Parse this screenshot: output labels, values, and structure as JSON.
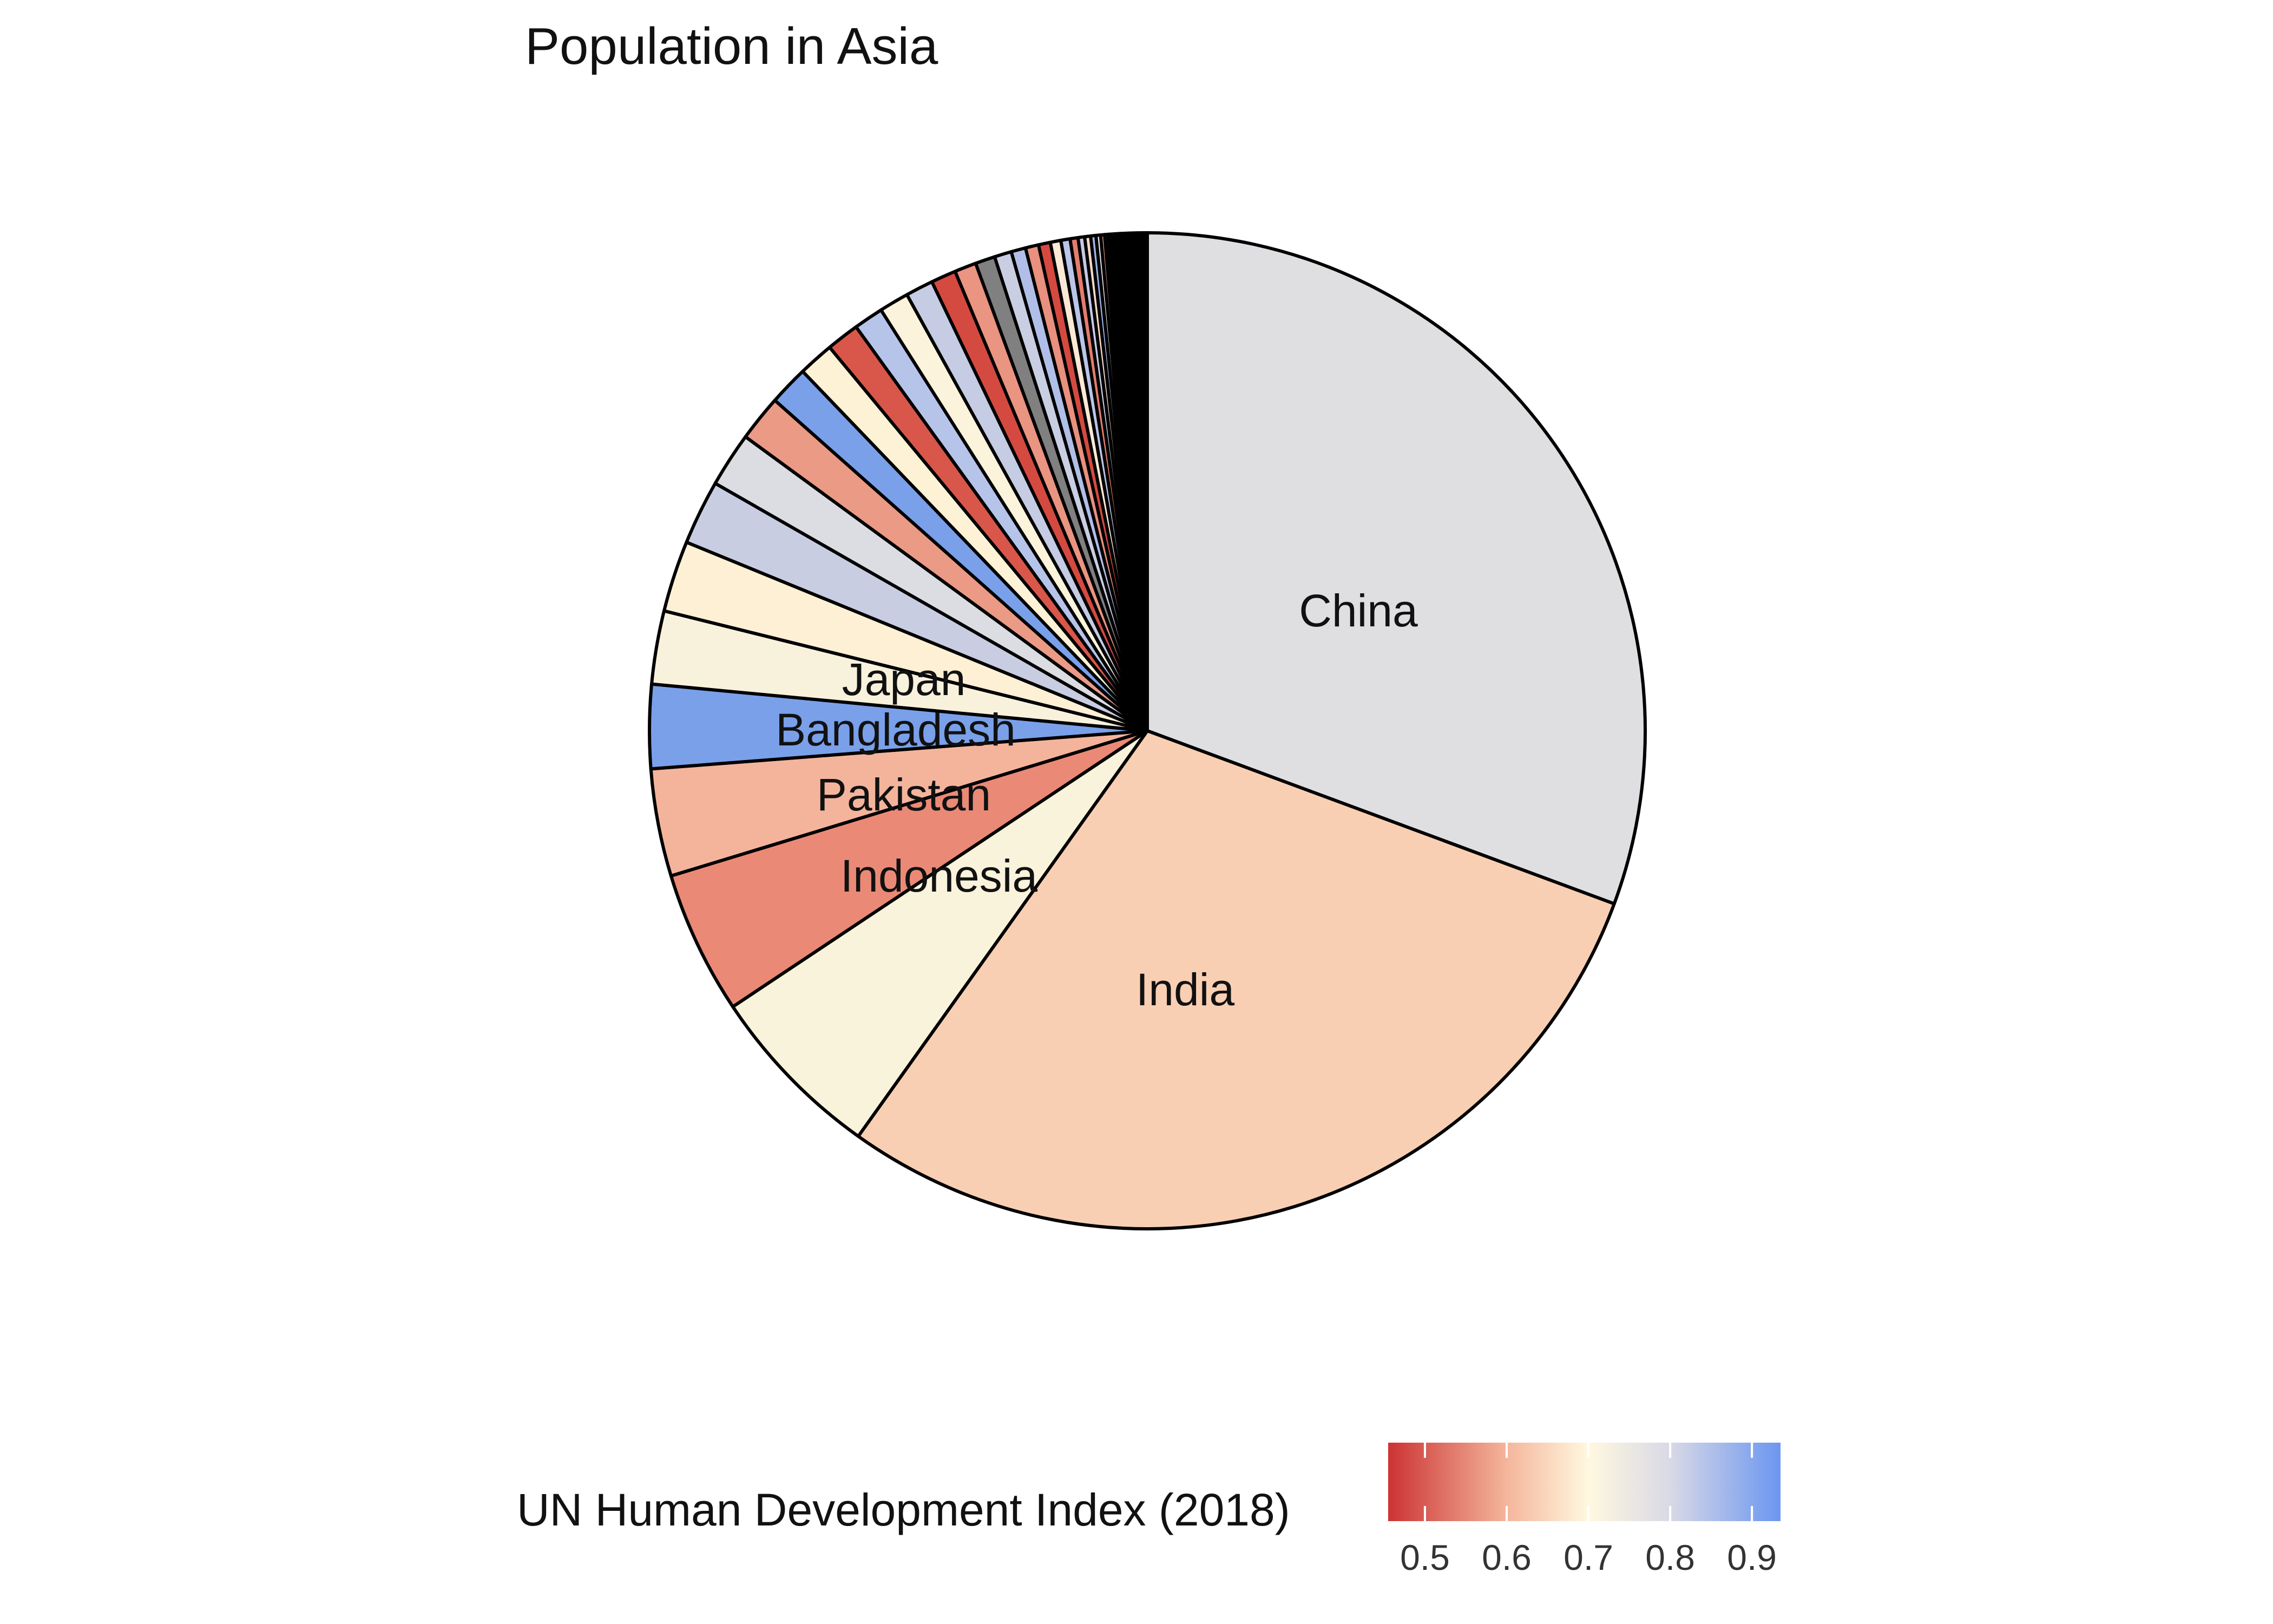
{
  "chart_data": {
    "type": "pie",
    "title": "Population in Asia",
    "legend": {
      "title": "UN Human Development Index (2018)",
      "placement": "bottom",
      "type": "continuous-colorbar",
      "range": [
        0.455,
        0.935
      ],
      "ticks": [
        "0.5",
        "0.6",
        "0.7",
        "0.8",
        "0.9"
      ],
      "tick_values": [
        0.5,
        0.6,
        0.7,
        0.8,
        0.9
      ],
      "colors": [
        "#cc3333",
        "#f4b69c",
        "#fff8df",
        "#d9d9e6",
        "#6b96f0"
      ],
      "color_stops": [
        0.455,
        0.6,
        0.7,
        0.8,
        0.935
      ],
      "missing_color": "#808080"
    },
    "slices": [
      {
        "label": "China",
        "value": 1433,
        "color": "#dfdfe2"
      },
      {
        "label": "India",
        "value": 1366,
        "color": "#f9cfb3"
      },
      {
        "label": "Indonesia",
        "value": 271,
        "color": "#f9f3dc"
      },
      {
        "label": "Pakistan",
        "value": 217,
        "color": "#ea8a76"
      },
      {
        "label": "Bangladesh",
        "value": 163,
        "color": "#f4b49c"
      },
      {
        "label": "Japan",
        "value": 127,
        "color": "#7aa0ea"
      },
      {
        "label": "",
        "value": 111,
        "color": "#f8f1dc"
      },
      {
        "label": "",
        "value": 108,
        "color": "#fdf0d4"
      },
      {
        "label": "",
        "value": 98,
        "color": "#c9cde2"
      },
      {
        "label": "",
        "value": 83,
        "color": "#dcdde2"
      },
      {
        "label": "",
        "value": 70,
        "color": "#eb9a86"
      },
      {
        "label": "",
        "value": 60,
        "color": "#7aa0ea"
      },
      {
        "label": "",
        "value": 54,
        "color": "#fdf2d5"
      },
      {
        "label": "",
        "value": 50,
        "color": "#d8574a"
      },
      {
        "label": "",
        "value": 45,
        "color": "#b7c4ea"
      },
      {
        "label": "",
        "value": 45,
        "color": "#fbf3db"
      },
      {
        "label": "",
        "value": 42,
        "color": "#c5cce4"
      },
      {
        "label": "",
        "value": 38,
        "color": "#d54a40"
      },
      {
        "label": "",
        "value": 33,
        "color": "#ea9482"
      },
      {
        "label": "",
        "value": 30,
        "color": "#808080"
      },
      {
        "label": "",
        "value": 26,
        "color": "#c9cee2"
      },
      {
        "label": "",
        "value": 22,
        "color": "#b1bfe8"
      },
      {
        "label": "",
        "value": 20,
        "color": "#e9907e"
      },
      {
        "label": "",
        "value": 18,
        "color": "#d44a40"
      },
      {
        "label": "",
        "value": 16,
        "color": "#fbe9d6"
      },
      {
        "label": "",
        "value": 14,
        "color": "#bac5e9"
      },
      {
        "label": "",
        "value": 12,
        "color": "#e57d6c"
      },
      {
        "label": "",
        "value": 10,
        "color": "#c5cbe6"
      },
      {
        "label": "",
        "value": 9,
        "color": "#f7d9c5"
      },
      {
        "label": "",
        "value": 8,
        "color": "#9db3ec"
      },
      {
        "label": "",
        "value": 7,
        "color": "#dddde3"
      },
      {
        "label": "",
        "value": 6,
        "color": "#f2a28e"
      },
      {
        "label": "",
        "value": 5,
        "color": "#b9c6ea"
      },
      {
        "label": "",
        "value": 4,
        "color": "#e6e0dc"
      },
      {
        "label": "",
        "value": 55,
        "color": "#000000"
      }
    ]
  }
}
